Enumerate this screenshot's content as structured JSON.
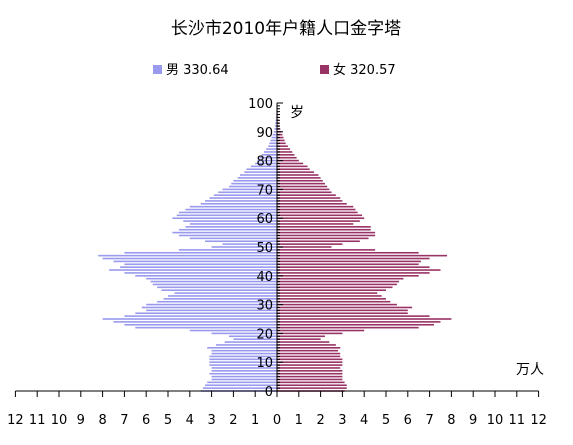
{
  "chart_data": {
    "type": "bar",
    "orientation": "horizontal-population-pyramid",
    "title": "长沙市2010年户籍人口金字塔",
    "age_axis_label": "岁",
    "value_axis_unit": "万人",
    "age_ticks": [
      "0",
      "10",
      "20",
      "30",
      "40",
      "50",
      "60",
      "70",
      "80",
      "90",
      "100"
    ],
    "value_ticks": [
      "12",
      "11",
      "10",
      "9",
      "8",
      "7",
      "6",
      "5",
      "4",
      "3",
      "2",
      "1",
      "0",
      "1",
      "2",
      "3",
      "4",
      "5",
      "6",
      "7",
      "8",
      "9",
      "10",
      "11",
      "12"
    ],
    "xlim": [
      -12,
      12
    ],
    "age_range": [
      0,
      100
    ],
    "colors": {
      "male": "#9999ee",
      "female": "#993366",
      "axis": "#000000"
    },
    "series": [
      {
        "name": "男",
        "legend_label": "男 330.64",
        "total": "330.64",
        "ages": [
          0,
          1,
          2,
          3,
          4,
          5,
          6,
          7,
          8,
          9,
          10,
          11,
          12,
          13,
          14,
          15,
          16,
          17,
          18,
          19,
          20,
          21,
          22,
          23,
          24,
          25,
          26,
          27,
          28,
          29,
          30,
          31,
          32,
          33,
          34,
          35,
          36,
          37,
          38,
          39,
          40,
          41,
          42,
          43,
          44,
          45,
          46,
          47,
          48,
          49,
          50,
          51,
          52,
          53,
          54,
          55,
          56,
          57,
          58,
          59,
          60,
          61,
          62,
          63,
          64,
          65,
          66,
          67,
          68,
          69,
          70,
          71,
          72,
          73,
          74,
          75,
          76,
          77,
          78,
          79,
          80,
          81,
          82,
          83,
          84,
          85,
          86,
          87,
          88,
          89,
          90,
          91,
          92,
          93,
          94,
          95,
          96,
          97,
          98,
          99,
          100
        ],
        "values": [
          3.5,
          3.4,
          3.3,
          3.2,
          3.0,
          3.0,
          3.1,
          3.0,
          3.0,
          3.1,
          3.1,
          3.1,
          3.1,
          3.0,
          3.0,
          3.2,
          2.8,
          2.4,
          2.0,
          2.2,
          3.0,
          4.0,
          6.5,
          7.0,
          7.5,
          8.0,
          7.0,
          6.5,
          6.0,
          6.2,
          6.0,
          5.5,
          5.2,
          5.0,
          4.7,
          5.3,
          5.5,
          5.7,
          5.8,
          6.0,
          6.5,
          7.0,
          7.7,
          7.2,
          7.0,
          7.5,
          8.0,
          8.2,
          7.0,
          4.5,
          3.0,
          2.5,
          3.3,
          4.0,
          4.5,
          4.8,
          4.5,
          4.2,
          4.0,
          4.3,
          4.8,
          4.6,
          4.5,
          4.2,
          4.0,
          3.5,
          3.3,
          3.1,
          2.9,
          2.7,
          2.5,
          2.2,
          2.1,
          2.0,
          1.8,
          1.7,
          1.5,
          1.4,
          1.2,
          1.0,
          0.9,
          0.8,
          0.7,
          0.6,
          0.5,
          0.4,
          0.35,
          0.3,
          0.25,
          0.2,
          0.15,
          0.12,
          0.1,
          0.08,
          0.06,
          0.05,
          0.04,
          0.03,
          0.02,
          0.01,
          0.01
        ]
      },
      {
        "name": "女",
        "legend_label": "女 320.57",
        "total": "320.57",
        "ages": [
          0,
          1,
          2,
          3,
          4,
          5,
          6,
          7,
          8,
          9,
          10,
          11,
          12,
          13,
          14,
          15,
          16,
          17,
          18,
          19,
          20,
          21,
          22,
          23,
          24,
          25,
          26,
          27,
          28,
          29,
          30,
          31,
          32,
          33,
          34,
          35,
          36,
          37,
          38,
          39,
          40,
          41,
          42,
          43,
          44,
          45,
          46,
          47,
          48,
          49,
          50,
          51,
          52,
          53,
          54,
          55,
          56,
          57,
          58,
          59,
          60,
          61,
          62,
          63,
          64,
          65,
          66,
          67,
          68,
          69,
          70,
          71,
          72,
          73,
          74,
          75,
          76,
          77,
          78,
          79,
          80,
          81,
          82,
          83,
          84,
          85,
          86,
          87,
          88,
          89,
          90,
          91,
          92,
          93,
          94,
          95,
          96,
          97,
          98,
          99,
          100
        ],
        "values": [
          3.1,
          3.2,
          3.2,
          3.1,
          3.0,
          3.0,
          3.0,
          3.0,
          2.9,
          3.0,
          3.0,
          3.0,
          2.9,
          2.9,
          2.8,
          2.9,
          2.7,
          2.4,
          2.0,
          2.2,
          3.0,
          4.0,
          6.5,
          7.2,
          7.5,
          8.0,
          7.0,
          6.0,
          6.0,
          6.2,
          5.5,
          5.2,
          5.0,
          4.8,
          4.6,
          5.0,
          5.3,
          5.5,
          5.6,
          5.8,
          6.5,
          7.0,
          7.5,
          7.0,
          6.5,
          6.6,
          7.0,
          7.8,
          6.5,
          4.5,
          2.5,
          3.0,
          3.8,
          4.2,
          4.5,
          4.5,
          4.3,
          4.3,
          3.5,
          3.8,
          4.0,
          3.9,
          3.7,
          3.6,
          3.5,
          3.2,
          3.0,
          2.9,
          2.7,
          2.5,
          2.4,
          2.3,
          2.2,
          2.1,
          2.0,
          1.9,
          1.7,
          1.5,
          1.4,
          1.2,
          1.0,
          0.9,
          0.8,
          0.7,
          0.6,
          0.5,
          0.4,
          0.35,
          0.3,
          0.25,
          0.2,
          0.15,
          0.12,
          0.1,
          0.08,
          0.06,
          0.05,
          0.04,
          0.03,
          0.02,
          0.01
        ]
      }
    ]
  }
}
